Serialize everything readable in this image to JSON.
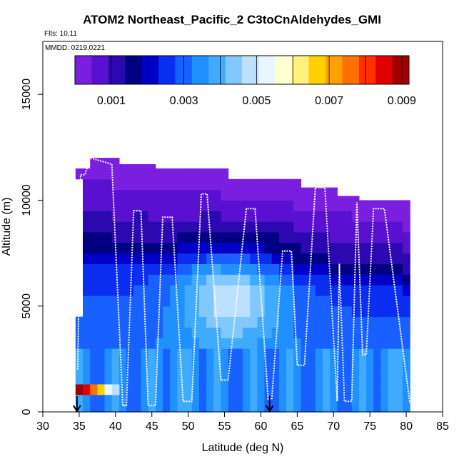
{
  "title": "ATOM2 Northeast_Pacific_2 C3toCnAldehydes_GMI",
  "flights_label": "Flts: 10,11",
  "mmdd_label": "MMDD: 0219,0221",
  "chart_data": {
    "type": "heatmap",
    "title": "ATOM2 Northeast_Pacific_2 C3toCnAldehydes_GMI",
    "xlabel": "Latitude (deg N)",
    "ylabel": "Altitude (m)",
    "xlim": [
      30,
      85
    ],
    "ylim": [
      0,
      17500
    ],
    "xticks": [
      30,
      35,
      40,
      45,
      50,
      55,
      60,
      65,
      70,
      75,
      80,
      85
    ],
    "yticks": [
      0,
      5000,
      10000,
      15000
    ],
    "colorbar": {
      "range": [
        0,
        0.0092
      ],
      "tick_values": [
        0.001,
        0.003,
        0.005,
        0.007,
        0.009
      ],
      "tick_labels": [
        "0.001",
        "0.003",
        "0.005",
        "0.007",
        "0.009"
      ],
      "colors": [
        "#7a1fe0",
        "#5a10d0",
        "#2c08b0",
        "#000080",
        "#0000c8",
        "#0a2ef0",
        "#1860ff",
        "#2090ff",
        "#40aaff",
        "#80c8ff",
        "#bde0ff",
        "#eaf6ff",
        "#ffffd0",
        "#fff080",
        "#ffd000",
        "#ffa000",
        "#ff7000",
        "#ff3000",
        "#e00000",
        "#a00000"
      ]
    },
    "column_tops_m": [
      {
        "lat": 35.0,
        "top": 11500
      },
      {
        "lat": 36.0,
        "top": 12000
      },
      {
        "lat": 40.0,
        "top": 11700
      },
      {
        "lat": 45.0,
        "top": 11500
      },
      {
        "lat": 55.0,
        "top": 11000
      },
      {
        "lat": 60.0,
        "top": 11000
      },
      {
        "lat": 65.0,
        "top": 10600
      },
      {
        "lat": 70.0,
        "top": 10200
      },
      {
        "lat": 73.0,
        "top": 10000
      },
      {
        "lat": 80.0,
        "top": 9600
      }
    ],
    "low_level_band": {
      "lat_range": [
        34.5,
        40.5
      ],
      "alt_range": [
        800,
        1300
      ],
      "values": [
        0.0092,
        0.0085,
        0.0075,
        0.0065,
        0.0055,
        0.005
      ]
    },
    "flight_track": [
      [
        34.8,
        2000
      ],
      [
        35.2,
        11200
      ],
      [
        35.8,
        11200
      ],
      [
        36.5,
        12000
      ],
      [
        39.5,
        11700
      ],
      [
        41.0,
        300
      ],
      [
        41.5,
        300
      ],
      [
        42.5,
        9500
      ],
      [
        43.5,
        9500
      ],
      [
        44.5,
        300
      ],
      [
        45.5,
        300
      ],
      [
        46.5,
        9200
      ],
      [
        47.8,
        9200
      ],
      [
        49.3,
        500
      ],
      [
        50.5,
        500
      ],
      [
        51.8,
        10300
      ],
      [
        52.6,
        10300
      ],
      [
        54.5,
        1500
      ],
      [
        55.5,
        1500
      ],
      [
        58.0,
        9600
      ],
      [
        59.2,
        9600
      ],
      [
        61.0,
        600
      ],
      [
        61.5,
        600
      ],
      [
        63.0,
        7600
      ],
      [
        64.2,
        7600
      ],
      [
        65.0,
        2200
      ],
      [
        66.0,
        2200
      ],
      [
        67.5,
        10600
      ],
      [
        68.8,
        10600
      ],
      [
        70.5,
        500
      ],
      [
        70.8,
        7000
      ],
      [
        71.5,
        500
      ],
      [
        72.5,
        500
      ],
      [
        73.2,
        9900
      ],
      [
        74.0,
        2700
      ],
      [
        74.5,
        2700
      ],
      [
        75.5,
        9600
      ],
      [
        77.0,
        9600
      ],
      [
        80.5,
        400
      ]
    ],
    "arrows_at_lat": [
      34.7,
      61.2
    ]
  }
}
